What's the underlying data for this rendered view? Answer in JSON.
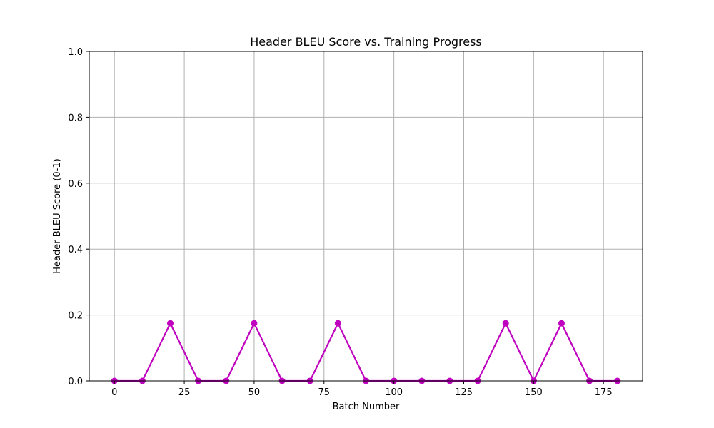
{
  "chart_data": {
    "type": "line",
    "title": "Header BLEU Score vs. Training Progress",
    "xlabel": "Batch Number",
    "ylabel": "Header BLEU Score (0-1)",
    "xlim": [
      -9,
      189
    ],
    "ylim": [
      0,
      1.0
    ],
    "x_ticks": [
      0,
      25,
      50,
      75,
      100,
      125,
      150,
      175
    ],
    "y_ticks": [
      0.0,
      0.2,
      0.4,
      0.6,
      0.8,
      1.0
    ],
    "y_tick_labels": [
      "0.0",
      "0.2",
      "0.4",
      "0.6",
      "0.8",
      "1.0"
    ],
    "grid": true,
    "series": [
      {
        "color": "#bf00bf",
        "marker": "circle",
        "x": [
          0,
          10,
          20,
          30,
          40,
          50,
          60,
          70,
          80,
          90,
          100,
          110,
          120,
          130,
          140,
          150,
          160,
          170,
          180
        ],
        "y": [
          0,
          0,
          0.175,
          0,
          0,
          0.175,
          0,
          0,
          0.175,
          0,
          0,
          0,
          0,
          0,
          0.175,
          0,
          0.175,
          0,
          0
        ]
      }
    ]
  }
}
